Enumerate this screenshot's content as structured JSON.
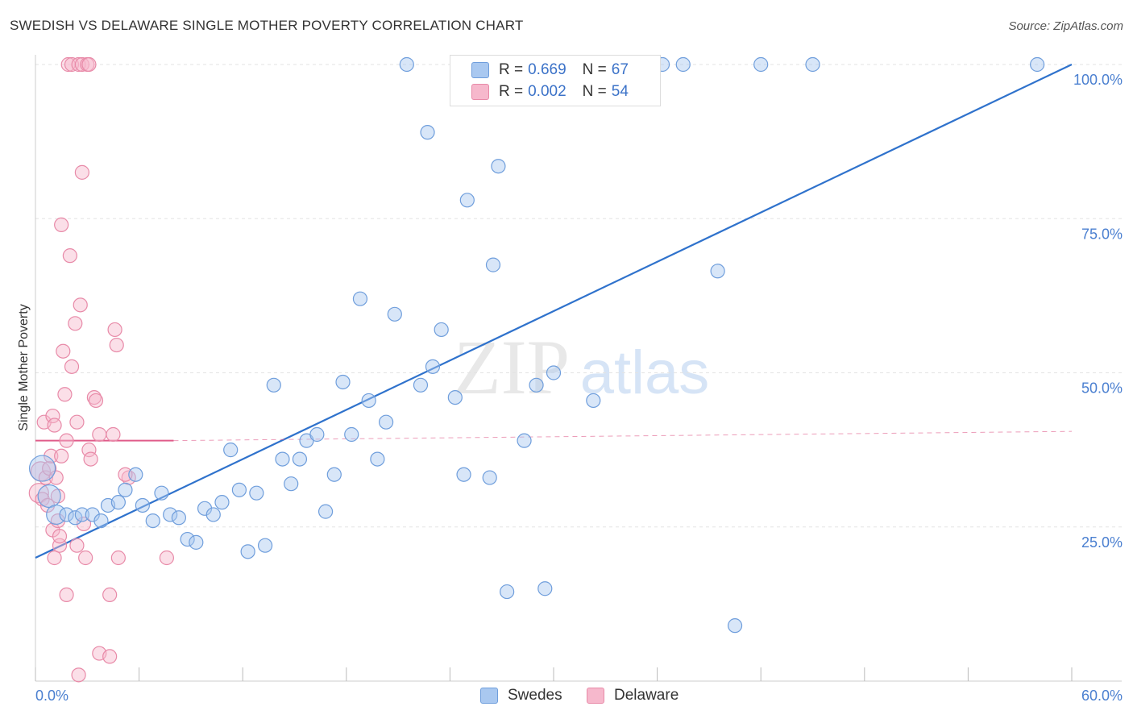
{
  "title": "SWEDISH VS DELAWARE SINGLE MOTHER POVERTY CORRELATION CHART",
  "source": "Source: ZipAtlas.com",
  "watermark": {
    "zip": "ZIP",
    "atlas": "atlas"
  },
  "legend_stats": [
    {
      "r_label": "R =",
      "r_value": "0.669",
      "n_label": "N =",
      "n_value": "67"
    },
    {
      "r_label": "R =",
      "r_value": "0.002",
      "n_label": "N =",
      "n_value": "54"
    }
  ],
  "colors": {
    "swedes_fill": "#a9c8f0",
    "swedes_stroke": "#6f9edc",
    "swedes_line": "#2f72cc",
    "delaware_fill": "#f6b8cc",
    "delaware_stroke": "#e88aa8",
    "delaware_line": "#e05c8a",
    "grid": "#e3e3e3",
    "tick_text": "#4a7fd0"
  },
  "chart_data": {
    "type": "scatter",
    "ylabel": "Single Mother Poverty",
    "xlim": [
      0,
      60
    ],
    "ylim": [
      0,
      100
    ],
    "x_tick_labels": [
      "0.0%",
      "60.0%"
    ],
    "y_ticks": [
      25,
      50,
      75,
      100
    ],
    "y_tick_labels": [
      "25.0%",
      "50.0%",
      "75.0%",
      "100.0%"
    ],
    "grid": "horizontal dashed",
    "legend_position": "top-center and bottom",
    "series": [
      {
        "name": "Swedes",
        "trend": {
          "x": [
            0,
            60
          ],
          "y": [
            20.0,
            100.0
          ],
          "style": "solid"
        },
        "points": [
          {
            "x": 0.4,
            "y": 34.5,
            "s": 16
          },
          {
            "x": 0.8,
            "y": 30.0,
            "s": 14
          },
          {
            "x": 1.2,
            "y": 27.0,
            "s": 12
          },
          {
            "x": 1.8,
            "y": 27.0
          },
          {
            "x": 2.3,
            "y": 26.5
          },
          {
            "x": 2.7,
            "y": 27.0
          },
          {
            "x": 3.3,
            "y": 27.0
          },
          {
            "x": 3.8,
            "y": 26.0
          },
          {
            "x": 4.2,
            "y": 28.5
          },
          {
            "x": 4.8,
            "y": 29.0
          },
          {
            "x": 5.2,
            "y": 31.0
          },
          {
            "x": 5.8,
            "y": 33.5
          },
          {
            "x": 6.2,
            "y": 28.5
          },
          {
            "x": 6.8,
            "y": 26.0
          },
          {
            "x": 7.3,
            "y": 30.5
          },
          {
            "x": 7.8,
            "y": 27.0
          },
          {
            "x": 8.3,
            "y": 26.5
          },
          {
            "x": 8.8,
            "y": 23.0
          },
          {
            "x": 9.3,
            "y": 22.5
          },
          {
            "x": 9.8,
            "y": 28.0
          },
          {
            "x": 10.3,
            "y": 27.0
          },
          {
            "x": 10.8,
            "y": 29.0
          },
          {
            "x": 11.3,
            "y": 37.5
          },
          {
            "x": 11.8,
            "y": 31.0
          },
          {
            "x": 12.3,
            "y": 21.0
          },
          {
            "x": 12.8,
            "y": 30.5
          },
          {
            "x": 13.3,
            "y": 22.0
          },
          {
            "x": 13.8,
            "y": 48.0
          },
          {
            "x": 14.3,
            "y": 36.0
          },
          {
            "x": 14.8,
            "y": 32.0
          },
          {
            "x": 15.3,
            "y": 36.0
          },
          {
            "x": 15.7,
            "y": 39.0
          },
          {
            "x": 16.3,
            "y": 40.0
          },
          {
            "x": 16.8,
            "y": 27.5
          },
          {
            "x": 17.3,
            "y": 33.5
          },
          {
            "x": 17.8,
            "y": 48.5
          },
          {
            "x": 18.3,
            "y": 40.0
          },
          {
            "x": 18.8,
            "y": 62.0
          },
          {
            "x": 19.3,
            "y": 45.5
          },
          {
            "x": 19.8,
            "y": 36.0
          },
          {
            "x": 20.3,
            "y": 42.0
          },
          {
            "x": 20.8,
            "y": 59.5
          },
          {
            "x": 21.5,
            "y": 100.0
          },
          {
            "x": 22.3,
            "y": 48.0
          },
          {
            "x": 22.7,
            "y": 89.0
          },
          {
            "x": 23.0,
            "y": 51.0
          },
          {
            "x": 23.5,
            "y": 57.0
          },
          {
            "x": 24.3,
            "y": 46.0
          },
          {
            "x": 24.8,
            "y": 33.5
          },
          {
            "x": 25.0,
            "y": 78.0
          },
          {
            "x": 26.3,
            "y": 33.0
          },
          {
            "x": 26.5,
            "y": 67.5
          },
          {
            "x": 26.8,
            "y": 83.5
          },
          {
            "x": 27.3,
            "y": 14.5
          },
          {
            "x": 28.3,
            "y": 39.0
          },
          {
            "x": 29.0,
            "y": 48.0
          },
          {
            "x": 29.5,
            "y": 15.0
          },
          {
            "x": 30.0,
            "y": 50.0
          },
          {
            "x": 31.0,
            "y": 100.0
          },
          {
            "x": 32.3,
            "y": 45.5
          },
          {
            "x": 36.3,
            "y": 100.0
          },
          {
            "x": 37.5,
            "y": 100.0
          },
          {
            "x": 39.5,
            "y": 66.5
          },
          {
            "x": 40.5,
            "y": 9.0
          },
          {
            "x": 42.0,
            "y": 100.0
          },
          {
            "x": 45.0,
            "y": 100.0
          },
          {
            "x": 58.0,
            "y": 100.0
          }
        ]
      },
      {
        "name": "Delaware",
        "trend": {
          "x": [
            0,
            8
          ],
          "y": [
            39.0,
            39.0
          ],
          "style": "solid",
          "extension_y": [
            39.0,
            40.5
          ],
          "extension_style": "dashed"
        },
        "points": [
          {
            "x": 0.2,
            "y": 30.5,
            "s": 12
          },
          {
            "x": 0.3,
            "y": 34.0,
            "s": 12
          },
          {
            "x": 0.4,
            "y": 29.5
          },
          {
            "x": 0.5,
            "y": 42.0
          },
          {
            "x": 0.6,
            "y": 33.0
          },
          {
            "x": 0.7,
            "y": 28.5
          },
          {
            "x": 0.8,
            "y": 34.5
          },
          {
            "x": 0.9,
            "y": 36.5
          },
          {
            "x": 1.0,
            "y": 43.0
          },
          {
            "x": 1.0,
            "y": 24.5
          },
          {
            "x": 1.1,
            "y": 41.5
          },
          {
            "x": 1.1,
            "y": 20.0
          },
          {
            "x": 1.2,
            "y": 33.0
          },
          {
            "x": 1.3,
            "y": 26.0
          },
          {
            "x": 1.3,
            "y": 30.0
          },
          {
            "x": 1.4,
            "y": 22.0
          },
          {
            "x": 1.4,
            "y": 23.5
          },
          {
            "x": 1.5,
            "y": 36.5
          },
          {
            "x": 1.5,
            "y": 74.0
          },
          {
            "x": 1.6,
            "y": 53.5
          },
          {
            "x": 1.7,
            "y": 46.5
          },
          {
            "x": 1.8,
            "y": 39.0
          },
          {
            "x": 1.8,
            "y": 14.0
          },
          {
            "x": 1.9,
            "y": 100.0
          },
          {
            "x": 2.0,
            "y": 69.0
          },
          {
            "x": 2.1,
            "y": 51.0
          },
          {
            "x": 2.1,
            "y": 100.0
          },
          {
            "x": 2.3,
            "y": 58.0
          },
          {
            "x": 2.4,
            "y": 42.0
          },
          {
            "x": 2.4,
            "y": 22.0
          },
          {
            "x": 2.5,
            "y": 1.0
          },
          {
            "x": 2.5,
            "y": 100.0
          },
          {
            "x": 2.6,
            "y": 61.0
          },
          {
            "x": 2.7,
            "y": 82.5
          },
          {
            "x": 2.7,
            "y": 100.0
          },
          {
            "x": 2.8,
            "y": 25.5
          },
          {
            "x": 2.9,
            "y": 20.0
          },
          {
            "x": 3.0,
            "y": 100.0
          },
          {
            "x": 3.1,
            "y": 37.5
          },
          {
            "x": 3.1,
            "y": 100.0
          },
          {
            "x": 3.2,
            "y": 36.0
          },
          {
            "x": 3.4,
            "y": 46.0
          },
          {
            "x": 3.5,
            "y": 45.5
          },
          {
            "x": 3.7,
            "y": 4.5
          },
          {
            "x": 3.7,
            "y": 40.0
          },
          {
            "x": 4.3,
            "y": 14.0
          },
          {
            "x": 4.3,
            "y": 4.0
          },
          {
            "x": 4.5,
            "y": 40.0
          },
          {
            "x": 4.6,
            "y": 57.0
          },
          {
            "x": 4.7,
            "y": 54.5
          },
          {
            "x": 4.8,
            "y": 20.0
          },
          {
            "x": 5.4,
            "y": 33.0
          },
          {
            "x": 7.6,
            "y": 20.0
          },
          {
            "x": 5.2,
            "y": 33.5
          }
        ]
      }
    ]
  }
}
